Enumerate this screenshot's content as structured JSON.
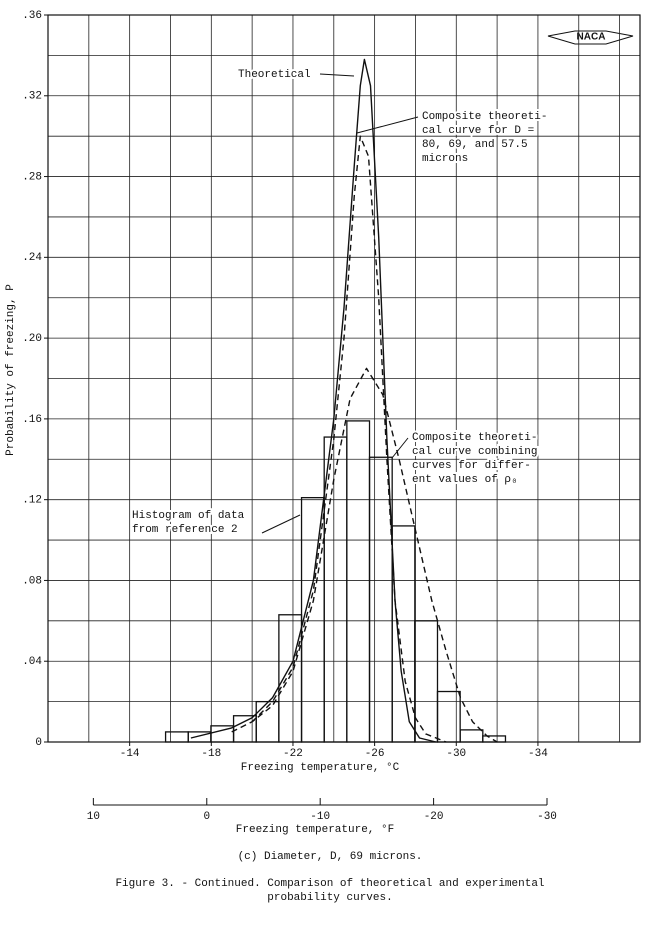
{
  "chart_data": {
    "type": "histogram",
    "ylabel": "Probability of freezing, P",
    "xlabel": "Freezing temperature, °C",
    "x2label": "Freezing temperature, °F",
    "logo": "NACA",
    "caption": "(c) Diameter, D, 69 microns.",
    "figure_caption": [
      "Figure 3. - Continued.  Comparison of theoretical and experimental",
      "probability curves."
    ],
    "xlim": [
      -10,
      -39
    ],
    "xticks": [
      -14,
      -18,
      -22,
      -26,
      -30,
      -34
    ],
    "x_grid": [
      -10,
      -12,
      -14,
      -16,
      -18,
      -20,
      -22,
      -24,
      -26,
      -28,
      -30,
      -32,
      -34,
      -36,
      -38
    ],
    "ylim": [
      0,
      0.36
    ],
    "yticks": [
      {
        "value": 0,
        "label": "0"
      },
      {
        "value": 0.04,
        "label": ".04"
      },
      {
        "value": 0.08,
        "label": ".08"
      },
      {
        "value": 0.12,
        "label": ".12"
      },
      {
        "value": 0.16,
        "label": ".16"
      },
      {
        "value": 0.2,
        "label": ".20"
      },
      {
        "value": 0.24,
        "label": ".24"
      },
      {
        "value": 0.28,
        "label": ".28"
      },
      {
        "value": 0.32,
        "label": ".32"
      },
      {
        "value": 0.36,
        "label": ".36"
      }
    ],
    "y_grid": [
      0.02,
      0.04,
      0.06,
      0.08,
      0.1,
      0.12,
      0.14,
      0.16,
      0.18,
      0.2,
      0.22,
      0.24,
      0.26,
      0.28,
      0.3,
      0.32,
      0.34
    ],
    "x2lim": [
      14,
      -38.2
    ],
    "x2ticks": [
      10,
      0,
      -10,
      -20,
      -30
    ],
    "grid": true,
    "color": "#111111",
    "bins": [
      -15.76,
      -16.87,
      -17.98,
      -19.09,
      -20.2,
      -21.31,
      -22.42,
      -23.53,
      -24.64,
      -25.75,
      -26.86,
      -27.97,
      -29.08,
      -30.19,
      -31.3,
      -32.41
    ],
    "values": [
      0.005,
      0.005,
      0.008,
      0.013,
      0.02,
      0.063,
      0.121,
      0.151,
      0.159,
      0.141,
      0.107,
      0.06,
      0.025,
      0.006,
      0.003
    ],
    "lines": [
      {
        "dash": false,
        "x": [
          -17,
          -19,
          -20,
          -21,
          -22,
          -23,
          -24,
          -24.5,
          -25,
          -25.3,
          -25.5,
          -25.8,
          -26.2,
          -26.6,
          -27,
          -27.3,
          -27.7,
          -28.2,
          -29
        ],
        "values": [
          0.002,
          0.007,
          0.012,
          0.022,
          0.04,
          0.08,
          0.16,
          0.215,
          0.285,
          0.325,
          0.338,
          0.325,
          0.25,
          0.15,
          0.07,
          0.035,
          0.01,
          0.002,
          0
        ]
      },
      {
        "dash": true,
        "x": [
          -20,
          -21,
          -22,
          -23,
          -24,
          -24.5,
          -25,
          -25.3,
          -25.7,
          -26.2,
          -26.6,
          -27,
          -27.5,
          -28,
          -28.5,
          -29.5
        ],
        "values": [
          0.01,
          0.02,
          0.037,
          0.075,
          0.15,
          0.2,
          0.27,
          0.3,
          0.29,
          0.22,
          0.14,
          0.07,
          0.03,
          0.012,
          0.004,
          0
        ]
      },
      {
        "dash": true,
        "x": [
          -19,
          -20,
          -21,
          -22,
          -23,
          -24,
          -24.8,
          -25.6,
          -26.4,
          -27.2,
          -28,
          -28.8,
          -29.5,
          -30.2,
          -30.8,
          -31.5,
          -32
        ],
        "values": [
          0.005,
          0.01,
          0.018,
          0.035,
          0.07,
          0.13,
          0.17,
          0.185,
          0.172,
          0.14,
          0.105,
          0.07,
          0.045,
          0.022,
          0.01,
          0.003,
          0
        ]
      }
    ],
    "annotations": [
      {
        "lines": [
          "Theoretical"
        ]
      },
      {
        "lines": [
          "Composite theoreti-",
          "cal curve for D =",
          "80, 69, and 57.5",
          "microns"
        ]
      },
      {
        "lines": [
          "Composite theoreti-",
          "cal curve combining",
          "curves for differ-",
          "ent values of ρ₀"
        ]
      },
      {
        "lines": [
          "Histogram of data",
          "from reference 2"
        ]
      }
    ]
  }
}
